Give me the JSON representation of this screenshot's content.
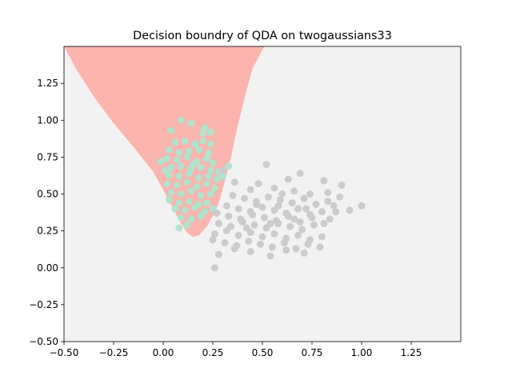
{
  "chart_data": {
    "type": "scatter",
    "title": "Decision boundry of QDA on twogaussians33",
    "xlabel": "",
    "ylabel": "",
    "xlim": [
      -0.5,
      1.5
    ],
    "ylim": [
      -0.5,
      1.5
    ],
    "x_ticks": [
      "−0.50",
      "−0.25",
      "0.00",
      "0.25",
      "0.50",
      "0.75",
      "1.00",
      "1.25"
    ],
    "x_tick_values": [
      -0.5,
      -0.25,
      0.0,
      0.25,
      0.5,
      0.75,
      1.0,
      1.25
    ],
    "y_ticks": [
      "−0.50",
      "−0.25",
      "0.00",
      "0.25",
      "0.50",
      "0.75",
      "1.00",
      "1.25"
    ],
    "y_tick_values": [
      -0.5,
      -0.25,
      0.0,
      0.25,
      0.5,
      0.75,
      1.0,
      1.25
    ],
    "grid": false,
    "legend": "none",
    "colors": {
      "background_region": "#f2f2f2",
      "class1_region": "#fbb4ae",
      "class1_points": "#b3e2cd",
      "class2_points": "#cccccc"
    },
    "decision_region": {
      "class": "class1",
      "boundary": [
        [
          -0.5,
          1.5
        ],
        [
          -0.44,
          1.35
        ],
        [
          -0.35,
          1.16
        ],
        [
          -0.25,
          0.98
        ],
        [
          -0.15,
          0.82
        ],
        [
          -0.05,
          0.65
        ],
        [
          0.0,
          0.53
        ],
        [
          0.05,
          0.4
        ],
        [
          0.09,
          0.3
        ],
        [
          0.12,
          0.24
        ],
        [
          0.15,
          0.21
        ],
        [
          0.18,
          0.22
        ],
        [
          0.2,
          0.25
        ],
        [
          0.22,
          0.28
        ],
        [
          0.25,
          0.35
        ],
        [
          0.28,
          0.44
        ],
        [
          0.31,
          0.58
        ],
        [
          0.34,
          0.74
        ],
        [
          0.37,
          0.93
        ],
        [
          0.41,
          1.15
        ],
        [
          0.45,
          1.35
        ],
        [
          0.51,
          1.5
        ]
      ]
    },
    "series": [
      {
        "values": [
          [
            0.09,
            1.0
          ],
          [
            0.14,
            0.98
          ],
          [
            0.21,
            0.95
          ],
          [
            0.04,
            0.93
          ],
          [
            0.24,
            0.92
          ],
          [
            0.06,
            0.85
          ],
          [
            0.11,
            0.86
          ],
          [
            0.16,
            0.84
          ],
          [
            0.2,
            0.86
          ],
          [
            0.24,
            0.84
          ],
          [
            0.03,
            0.8
          ],
          [
            0.08,
            0.78
          ],
          [
            0.13,
            0.79
          ],
          [
            0.18,
            0.8
          ],
          [
            0.23,
            0.78
          ],
          [
            0.02,
            0.74
          ],
          [
            0.07,
            0.73
          ],
          [
            0.12,
            0.75
          ],
          [
            0.17,
            0.72
          ],
          [
            0.22,
            0.74
          ],
          [
            0.25,
            0.71
          ],
          [
            -0.01,
            0.72
          ],
          [
            0.04,
            0.68
          ],
          [
            0.09,
            0.69
          ],
          [
            0.14,
            0.67
          ],
          [
            0.19,
            0.68
          ],
          [
            0.24,
            0.66
          ],
          [
            0.28,
            0.65
          ],
          [
            0.03,
            0.63
          ],
          [
            0.08,
            0.62
          ],
          [
            0.13,
            0.64
          ],
          [
            0.18,
            0.61
          ],
          [
            0.23,
            0.62
          ],
          [
            0.27,
            0.6
          ],
          [
            0.02,
            0.57
          ],
          [
            0.07,
            0.56
          ],
          [
            0.12,
            0.58
          ],
          [
            0.17,
            0.55
          ],
          [
            0.22,
            0.57
          ],
          [
            0.26,
            0.54
          ],
          [
            0.04,
            0.51
          ],
          [
            0.09,
            0.5
          ],
          [
            0.14,
            0.52
          ],
          [
            0.19,
            0.49
          ],
          [
            0.24,
            0.5
          ],
          [
            0.03,
            0.46
          ],
          [
            0.08,
            0.44
          ],
          [
            0.13,
            0.45
          ],
          [
            0.18,
            0.43
          ],
          [
            0.22,
            0.44
          ],
          [
            0.06,
            0.4
          ],
          [
            0.11,
            0.39
          ],
          [
            0.16,
            0.41
          ],
          [
            0.21,
            0.38
          ],
          [
            0.25,
            0.4
          ],
          [
            0.09,
            0.34
          ],
          [
            0.14,
            0.33
          ],
          [
            0.19,
            0.35
          ],
          [
            0.12,
            0.29
          ],
          [
            0.08,
            0.27
          ],
          [
            0.33,
            0.69
          ],
          [
            0.3,
            0.62
          ],
          [
            0.01,
            0.66
          ],
          [
            0.2,
            0.91
          ],
          [
            0.15,
            0.7
          ]
        ]
      },
      {
        "values": [
          [
            0.52,
            0.7
          ],
          [
            0.69,
            0.64
          ],
          [
            0.63,
            0.6
          ],
          [
            0.81,
            0.59
          ],
          [
            0.9,
            0.56
          ],
          [
            0.48,
            0.57
          ],
          [
            0.36,
            0.58
          ],
          [
            0.3,
            0.66
          ],
          [
            0.44,
            0.53
          ],
          [
            0.56,
            0.54
          ],
          [
            0.66,
            0.52
          ],
          [
            0.74,
            0.5
          ],
          [
            0.83,
            0.51
          ],
          [
            0.89,
            0.48
          ],
          [
            0.94,
            0.39
          ],
          [
            1.0,
            0.42
          ],
          [
            0.35,
            0.49
          ],
          [
            0.41,
            0.47
          ],
          [
            0.47,
            0.45
          ],
          [
            0.53,
            0.48
          ],
          [
            0.59,
            0.46
          ],
          [
            0.65,
            0.44
          ],
          [
            0.71,
            0.47
          ],
          [
            0.77,
            0.43
          ],
          [
            0.83,
            0.45
          ],
          [
            0.87,
            0.38
          ],
          [
            0.32,
            0.42
          ],
          [
            0.38,
            0.4
          ],
          [
            0.44,
            0.38
          ],
          [
            0.5,
            0.41
          ],
          [
            0.56,
            0.39
          ],
          [
            0.62,
            0.37
          ],
          [
            0.68,
            0.4
          ],
          [
            0.74,
            0.36
          ],
          [
            0.8,
            0.38
          ],
          [
            0.84,
            0.33
          ],
          [
            0.27,
            0.37
          ],
          [
            0.33,
            0.35
          ],
          [
            0.39,
            0.33
          ],
          [
            0.45,
            0.36
          ],
          [
            0.51,
            0.34
          ],
          [
            0.57,
            0.32
          ],
          [
            0.63,
            0.35
          ],
          [
            0.69,
            0.31
          ],
          [
            0.75,
            0.34
          ],
          [
            0.81,
            0.3
          ],
          [
            0.28,
            0.3
          ],
          [
            0.34,
            0.28
          ],
          [
            0.4,
            0.31
          ],
          [
            0.46,
            0.29
          ],
          [
            0.52,
            0.27
          ],
          [
            0.58,
            0.3
          ],
          [
            0.64,
            0.28
          ],
          [
            0.7,
            0.26
          ],
          [
            0.76,
            0.29
          ],
          [
            0.26,
            0.23
          ],
          [
            0.32,
            0.25
          ],
          [
            0.38,
            0.22
          ],
          [
            0.44,
            0.24
          ],
          [
            0.5,
            0.21
          ],
          [
            0.56,
            0.23
          ],
          [
            0.62,
            0.2
          ],
          [
            0.68,
            0.22
          ],
          [
            0.74,
            0.19
          ],
          [
            0.8,
            0.21
          ],
          [
            0.25,
            0.19
          ],
          [
            0.31,
            0.17
          ],
          [
            0.37,
            0.15
          ],
          [
            0.43,
            0.18
          ],
          [
            0.49,
            0.16
          ],
          [
            0.55,
            0.14
          ],
          [
            0.61,
            0.17
          ],
          [
            0.67,
            0.13
          ],
          [
            0.73,
            0.16
          ],
          [
            0.79,
            0.14
          ],
          [
            0.36,
            0.13
          ],
          [
            0.44,
            0.11
          ],
          [
            0.54,
            0.08
          ],
          [
            0.62,
            0.12
          ],
          [
            0.71,
            0.1
          ],
          [
            0.28,
            0.09
          ],
          [
            0.26,
            0.0
          ],
          [
            0.47,
            0.43
          ],
          [
            0.58,
            0.42
          ],
          [
            0.42,
            0.27
          ],
          [
            0.66,
            0.33
          ],
          [
            0.54,
            0.3
          ],
          [
            0.72,
            0.4
          ],
          [
            0.6,
            0.5
          ],
          [
            0.86,
            0.42
          ]
        ]
      }
    ]
  }
}
